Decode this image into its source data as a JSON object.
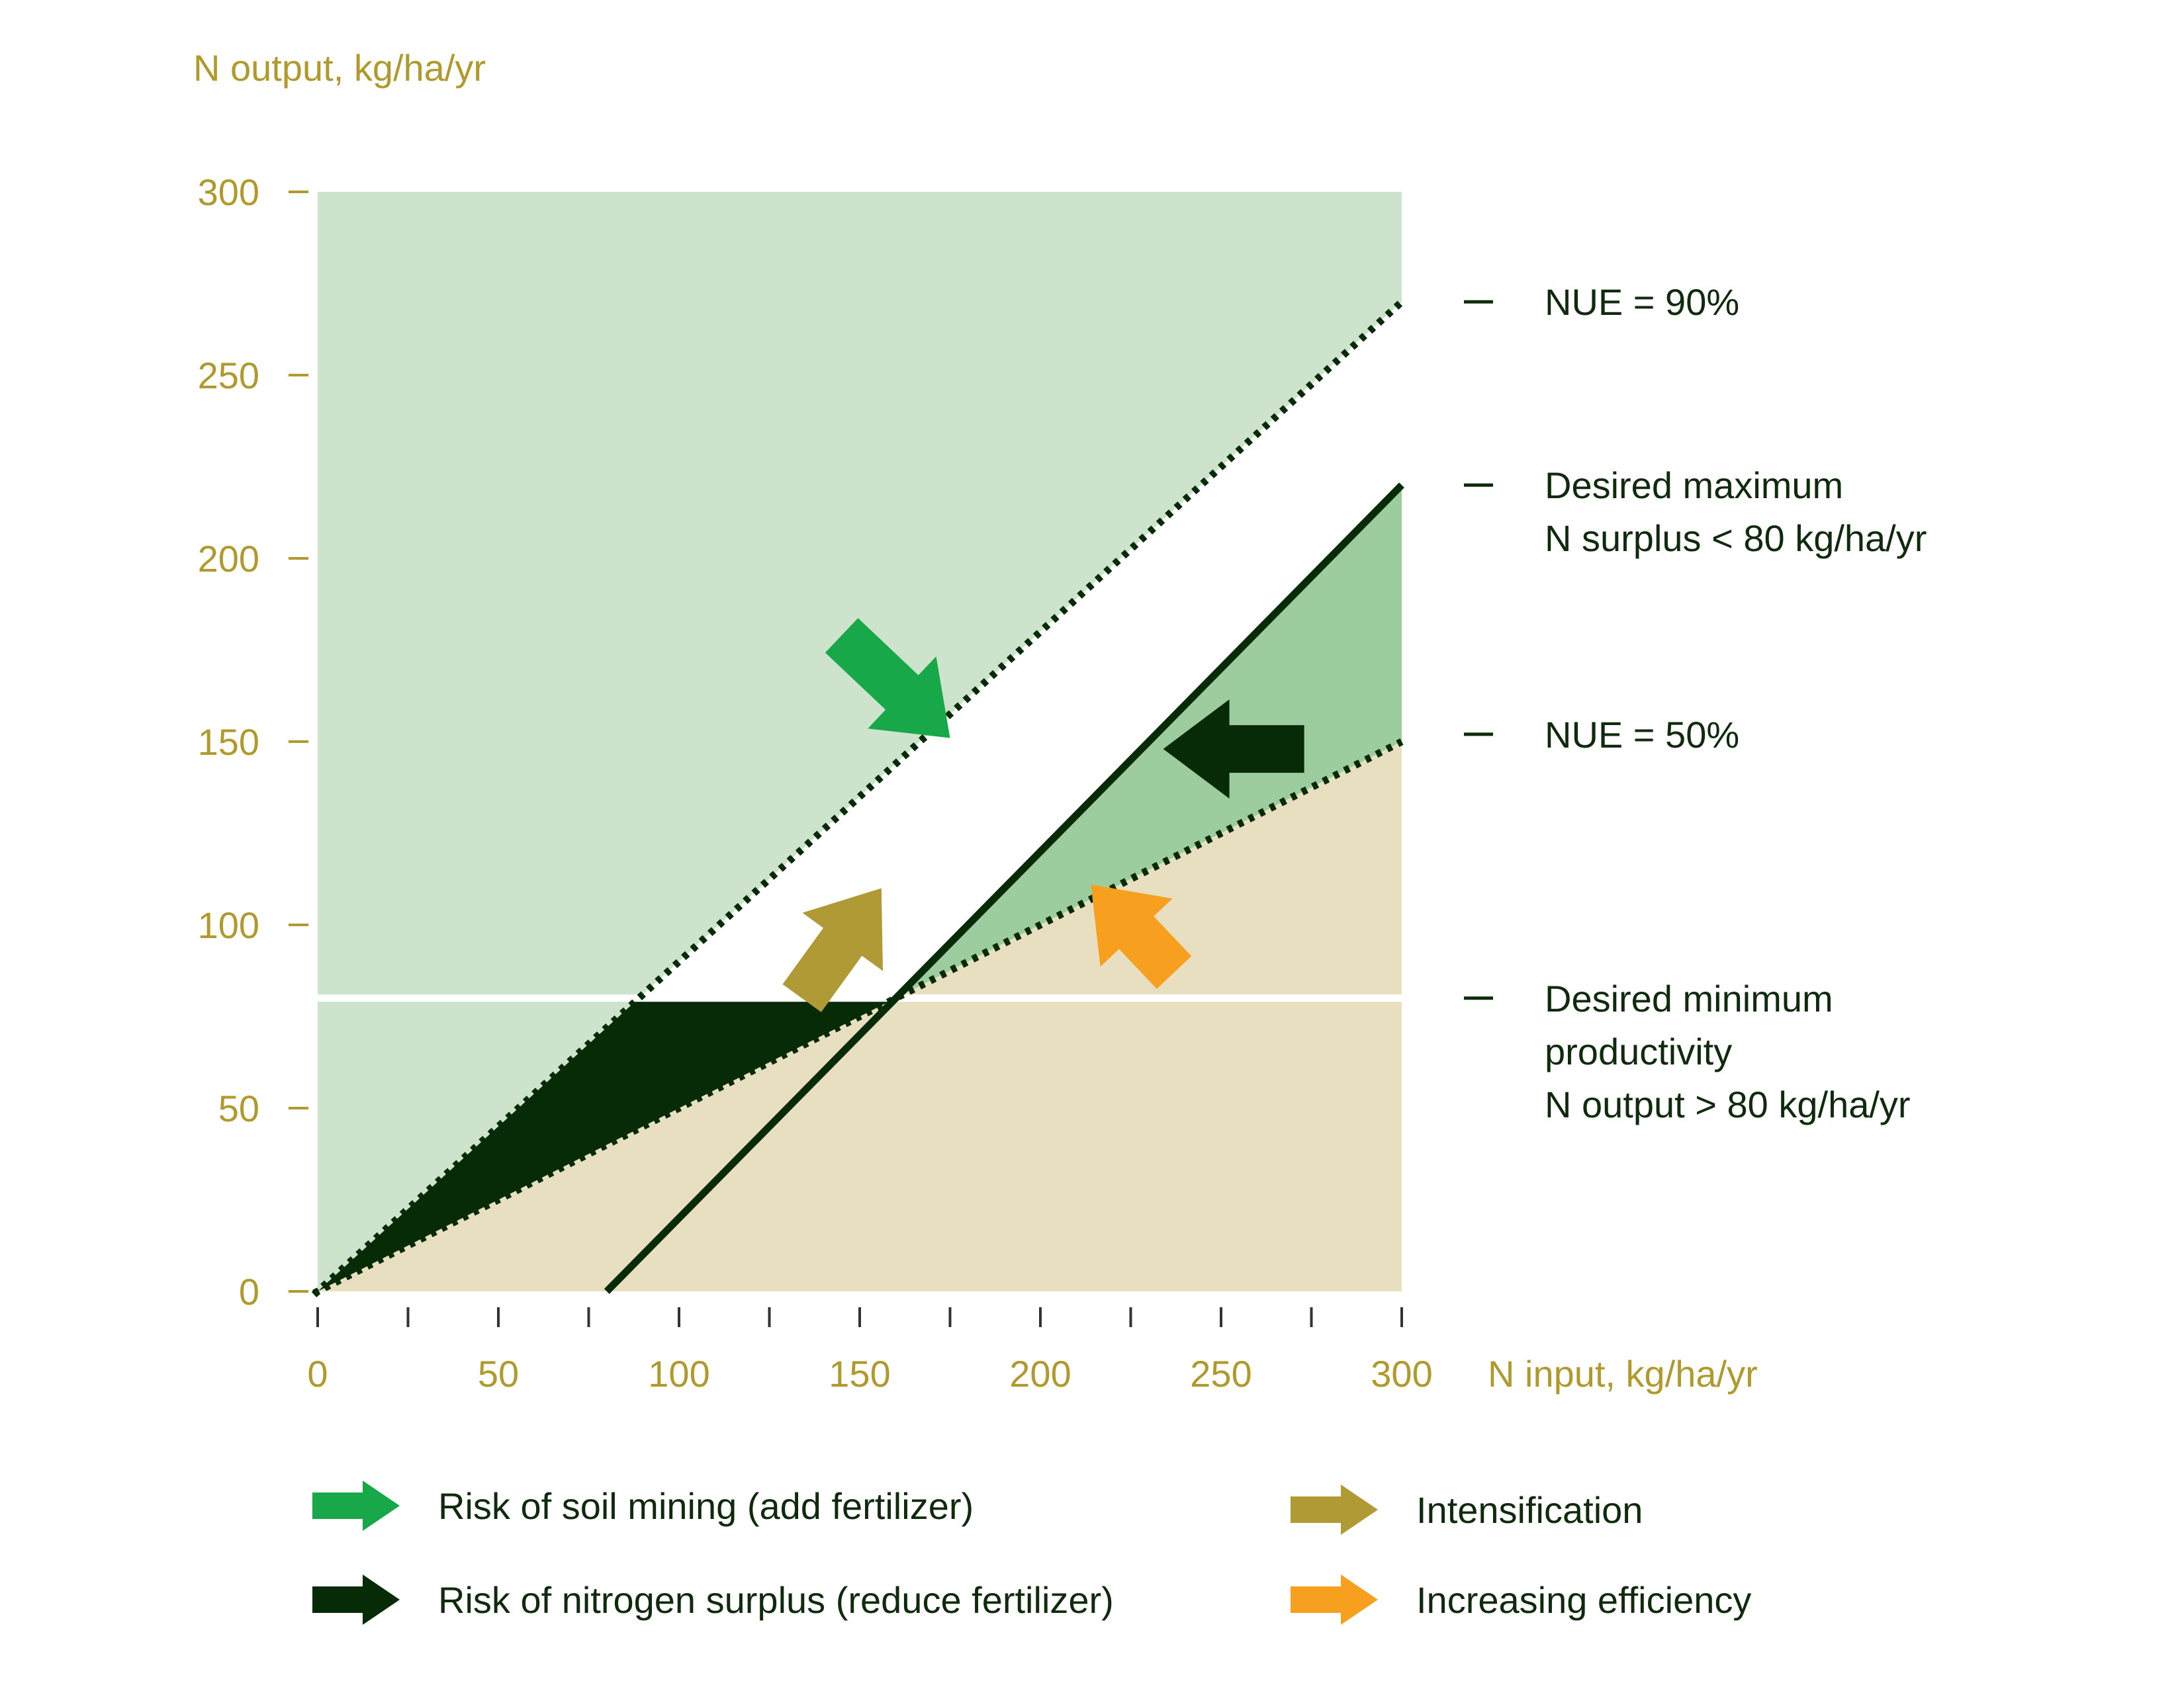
{
  "chart_data": {
    "type": "line",
    "title": "",
    "xlabel": "N input, kg/ha/yr",
    "ylabel": "N output, kg/ha/yr",
    "xlim": [
      0,
      300
    ],
    "ylim": [
      0,
      300
    ],
    "x_ticks": [
      0,
      50,
      100,
      150,
      200,
      250,
      300
    ],
    "y_ticks": [
      0,
      50,
      100,
      150,
      200,
      250,
      300
    ],
    "grid": false,
    "series": [
      {
        "name": "NUE = 90%",
        "style": "dotted",
        "x": [
          0,
          300
        ],
        "y": [
          0,
          270
        ]
      },
      {
        "name": "NUE = 50%",
        "style": "dotted",
        "x": [
          0,
          300
        ],
        "y": [
          0,
          150
        ]
      },
      {
        "name": "Desired maximum N surplus < 80 kg/ha/yr",
        "style": "solid",
        "x": [
          80,
          300
        ],
        "y": [
          0,
          220
        ]
      },
      {
        "name": "Desired minimum productivity N output > 80 kg/ha/yr",
        "style": "solid-white",
        "x": [
          0,
          300
        ],
        "y": [
          80,
          80
        ]
      }
    ],
    "line_labels": [
      {
        "id": "nue90",
        "lines": [
          "NUE = 90%"
        ],
        "y": 270
      },
      {
        "id": "maxsurplus",
        "lines": [
          "Desired maximum",
          "N surplus < 80 kg/ha/yr"
        ],
        "y": 220
      },
      {
        "id": "nue50",
        "lines": [
          "NUE = 50%"
        ],
        "y": 152
      },
      {
        "id": "minprod",
        "lines": [
          "Desired minimum",
          "productivity",
          "N output > 80 kg/ha/yr"
        ],
        "y": 80
      }
    ],
    "arrows": [
      {
        "id": "soil-mining",
        "color": "#18a84a",
        "from": [
          145,
          179
        ],
        "to": [
          175,
          151
        ]
      },
      {
        "id": "nitrogen-surplus",
        "color": "#062b06",
        "from": [
          273,
          148
        ],
        "to": [
          234,
          148
        ]
      },
      {
        "id": "intensification",
        "color": "#b09a36",
        "from": [
          134,
          80
        ],
        "to": [
          156,
          110
        ]
      },
      {
        "id": "increasing-efficiency",
        "color": "#f7a020",
        "from": [
          237,
          87
        ],
        "to": [
          214,
          111
        ]
      }
    ],
    "legend_position": "bottom",
    "legend": [
      {
        "label": "Risk of soil mining (add fertilizer)",
        "color": "#18a84a"
      },
      {
        "label": "Risk of nitrogen surplus (reduce fertilizer)",
        "color": "#062b06"
      },
      {
        "label": "Intensification",
        "color": "#b09a36"
      },
      {
        "label": "Increasing efficiency",
        "color": "#f7a020"
      }
    ],
    "colors": {
      "region_upper": "#cde3cb",
      "region_between": "#9dcd9e",
      "region_lower": "#e8dfc1",
      "region_white": "#ffffff",
      "surplus_fill": "#062b06",
      "line_dark": "#062b06",
      "axis_text": "#b09a2e",
      "label_text": "#0f2a0c"
    }
  }
}
